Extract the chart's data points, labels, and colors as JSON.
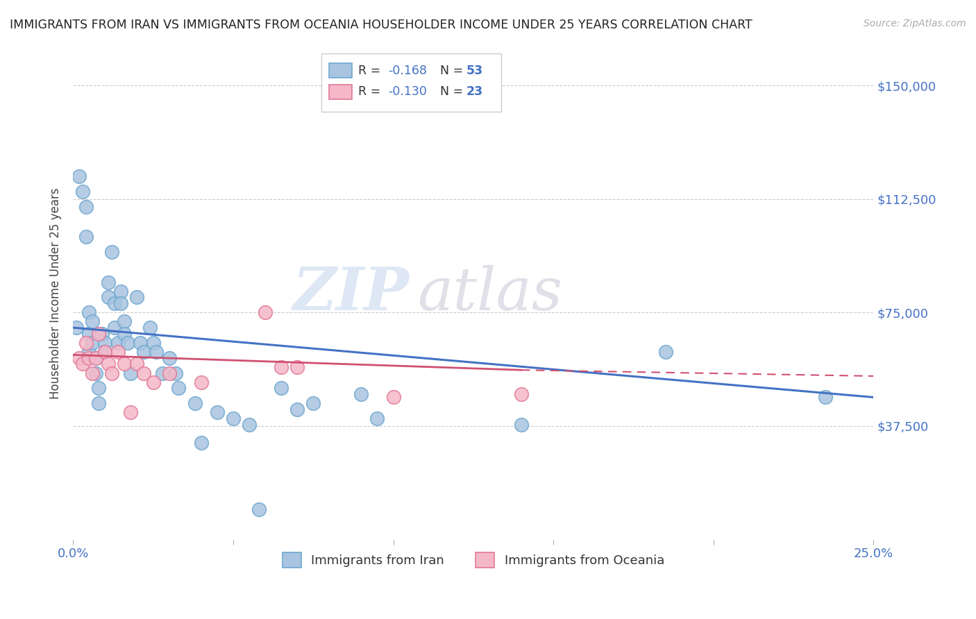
{
  "title": "IMMIGRANTS FROM IRAN VS IMMIGRANTS FROM OCEANIA HOUSEHOLDER INCOME UNDER 25 YEARS CORRELATION CHART",
  "source": "Source: ZipAtlas.com",
  "ylabel": "Householder Income Under 25 years",
  "ytick_labels": [
    "$37,500",
    "$75,000",
    "$112,500",
    "$150,000"
  ],
  "ytick_values": [
    37500,
    75000,
    112500,
    150000
  ],
  "legend_bottom_iran": "Immigrants from Iran",
  "legend_bottom_oceania": "Immigrants from Oceania",
  "iran_color": "#a8c4e0",
  "iran_edge_color": "#6fa8d0",
  "oceania_color": "#f5b8c8",
  "oceania_edge_color": "#e07898",
  "iran_line_color": "#4472c4",
  "oceania_line_color": "#d05070",
  "title_color": "#222222",
  "axis_label_color": "#4472c4",
  "R_value_iran": "-0.168",
  "R_value_oceania": "-0.130",
  "N_iran": "53",
  "N_oceania": "23",
  "xlim": [
    0.0,
    0.25
  ],
  "ylim": [
    0,
    162500
  ],
  "iran_line_x0": 0.0,
  "iran_line_y0": 70000,
  "iran_line_x1": 0.25,
  "iran_line_y1": 47000,
  "oceania_line_x0": 0.0,
  "oceania_line_y0": 61000,
  "oceania_line_x1": 0.14,
  "oceania_line_y1": 56000,
  "oceania_line_dash_x0": 0.14,
  "oceania_line_dash_y0": 56000,
  "oceania_line_dash_x1": 0.25,
  "oceania_line_dash_y1": 54000,
  "iran_scatter_x": [
    0.001,
    0.002,
    0.003,
    0.004,
    0.004,
    0.005,
    0.005,
    0.005,
    0.006,
    0.006,
    0.007,
    0.007,
    0.008,
    0.008,
    0.009,
    0.01,
    0.01,
    0.011,
    0.011,
    0.012,
    0.013,
    0.013,
    0.014,
    0.015,
    0.015,
    0.016,
    0.016,
    0.017,
    0.018,
    0.02,
    0.021,
    0.022,
    0.024,
    0.025,
    0.026,
    0.028,
    0.03,
    0.032,
    0.033,
    0.038,
    0.04,
    0.045,
    0.05,
    0.055,
    0.058,
    0.065,
    0.07,
    0.075,
    0.09,
    0.095,
    0.14,
    0.185,
    0.235
  ],
  "iran_scatter_y": [
    70000,
    120000,
    115000,
    110000,
    100000,
    75000,
    68000,
    62000,
    72000,
    65000,
    60000,
    55000,
    50000,
    45000,
    68000,
    65000,
    62000,
    85000,
    80000,
    95000,
    78000,
    70000,
    65000,
    82000,
    78000,
    72000,
    68000,
    65000,
    55000,
    80000,
    65000,
    62000,
    70000,
    65000,
    62000,
    55000,
    60000,
    55000,
    50000,
    45000,
    32000,
    42000,
    40000,
    38000,
    10000,
    50000,
    43000,
    45000,
    48000,
    40000,
    38000,
    62000,
    47000
  ],
  "oceania_scatter_x": [
    0.002,
    0.003,
    0.004,
    0.005,
    0.006,
    0.007,
    0.008,
    0.01,
    0.011,
    0.012,
    0.014,
    0.016,
    0.018,
    0.02,
    0.022,
    0.025,
    0.03,
    0.04,
    0.06,
    0.065,
    0.07,
    0.1,
    0.14
  ],
  "oceania_scatter_y": [
    60000,
    58000,
    65000,
    60000,
    55000,
    60000,
    68000,
    62000,
    58000,
    55000,
    62000,
    58000,
    42000,
    58000,
    55000,
    52000,
    55000,
    52000,
    75000,
    57000,
    57000,
    47000,
    48000
  ],
  "watermark_zip": "ZIP",
  "watermark_atlas": "atlas",
  "background_color": "#ffffff",
  "grid_color": "#cccccc"
}
